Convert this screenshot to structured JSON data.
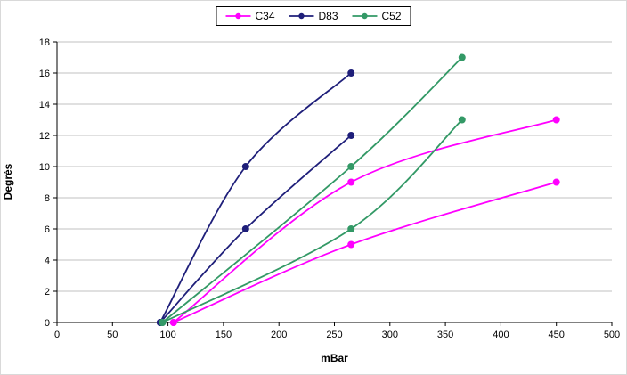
{
  "chart_data": {
    "type": "line",
    "title": "",
    "xlabel": "mBar",
    "ylabel": "Degrés",
    "xlim": [
      0,
      500
    ],
    "ylim": [
      0,
      18
    ],
    "x_ticks": [
      0,
      50,
      100,
      150,
      200,
      250,
      300,
      350,
      400,
      450,
      500
    ],
    "y_ticks": [
      0,
      2,
      4,
      6,
      8,
      10,
      12,
      14,
      16,
      18
    ],
    "grid": "horizontal",
    "gridline_color": "#c0c0c0",
    "axis_color": "#000000",
    "legend_position": "top-center",
    "legend_items": [
      {
        "label": "C34",
        "color": "#FF00FF"
      },
      {
        "label": "D83",
        "color": "#1F1F7A"
      },
      {
        "label": "C52",
        "color": "#339966"
      }
    ],
    "series": [
      {
        "name": "C34-upper",
        "legend": "C34",
        "color": "#FF00FF",
        "points": [
          [
            105,
            0
          ],
          [
            265,
            9
          ],
          [
            450,
            13
          ]
        ]
      },
      {
        "name": "C34-lower",
        "legend": "C34",
        "color": "#FF00FF",
        "points": [
          [
            105,
            0
          ],
          [
            265,
            5
          ],
          [
            450,
            9
          ]
        ]
      },
      {
        "name": "D83-upper",
        "legend": "D83",
        "color": "#1F1F7A",
        "points": [
          [
            93,
            0
          ],
          [
            170,
            10
          ],
          [
            265,
            16
          ]
        ]
      },
      {
        "name": "D83-lower",
        "legend": "D83",
        "color": "#1F1F7A",
        "points": [
          [
            93,
            0
          ],
          [
            170,
            6
          ],
          [
            265,
            12
          ]
        ]
      },
      {
        "name": "C52-upper",
        "legend": "C52",
        "color": "#339966",
        "points": [
          [
            95,
            0
          ],
          [
            265,
            10
          ],
          [
            365,
            17
          ]
        ]
      },
      {
        "name": "C52-lower",
        "legend": "C52",
        "color": "#339966",
        "points": [
          [
            95,
            0
          ],
          [
            265,
            6
          ],
          [
            365,
            13
          ]
        ]
      }
    ]
  }
}
